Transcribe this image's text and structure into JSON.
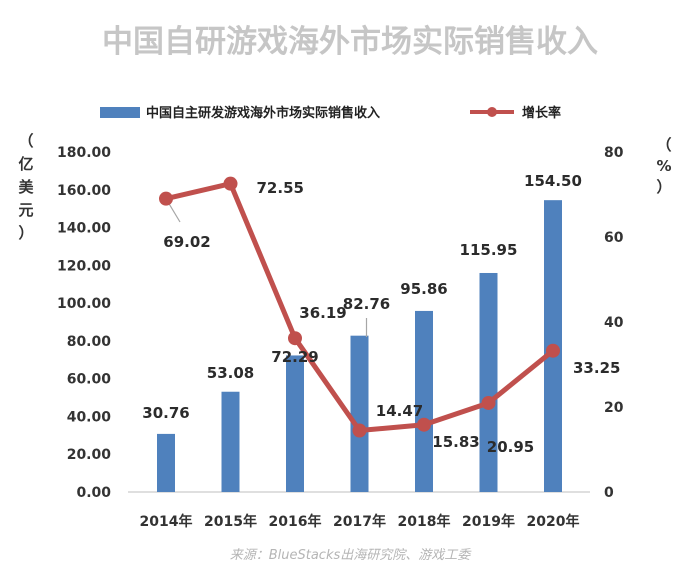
{
  "chart_data": {
    "type": "bar",
    "title": "中国自研游戏海外市场实际销售收入",
    "source": "来源：BlueStacks出海研究院、游戏工委",
    "categories": [
      "2014年",
      "2015年",
      "2016年",
      "2017年",
      "2018年",
      "2019年",
      "2020年"
    ],
    "series": [
      {
        "name": "中国自主研发游戏海外市场实际销售收入",
        "type": "bar",
        "axis": "left",
        "color": "#4f81bd",
        "values": [
          30.76,
          53.08,
          72.29,
          82.76,
          95.86,
          115.95,
          154.5
        ],
        "labels": [
          "30.76",
          "53.08",
          "72.29",
          "82.76",
          "95.86",
          "115.95",
          "154.50"
        ]
      },
      {
        "name": "增长率",
        "type": "line",
        "axis": "right",
        "color": "#c0504d",
        "values": [
          69.02,
          72.55,
          36.19,
          14.47,
          15.83,
          20.95,
          33.25
        ],
        "labels": [
          "69.02",
          "72.55",
          "36.19",
          "14.47",
          "15.83",
          "20.95",
          "33.25"
        ]
      }
    ],
    "y_left": {
      "unit_label": [
        "（",
        "亿",
        "美",
        "元",
        "）"
      ],
      "range": [
        0,
        180
      ],
      "ticks": [
        "0.00",
        "20.00",
        "40.00",
        "60.00",
        "80.00",
        "100.00",
        "120.00",
        "140.00",
        "160.00",
        "180.00"
      ]
    },
    "y_right": {
      "unit_label": [
        "（",
        "%",
        "）"
      ],
      "range": [
        0,
        80
      ],
      "ticks": [
        "0",
        "20",
        "40",
        "60",
        "80"
      ]
    },
    "grid": false,
    "legend_position": "top"
  }
}
